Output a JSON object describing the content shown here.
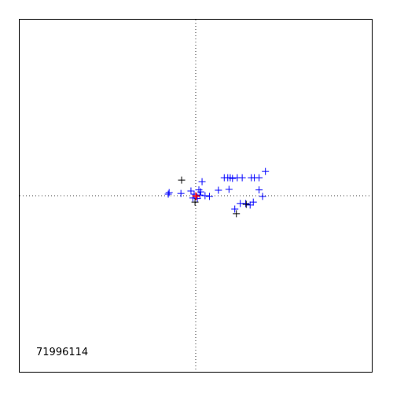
{
  "chart_data": {
    "type": "scatter",
    "title": "",
    "xlabel": "",
    "ylabel": "",
    "annotation": "71996114",
    "xlim": [
      -10,
      10
    ],
    "ylim": [
      -10,
      10
    ],
    "grid": false,
    "zero_lines": true,
    "series": [
      {
        "marker": "+",
        "color": "#0000ff",
        "points": [
          [
            -1.56,
            0.09
          ],
          [
            -1.51,
            0.18
          ],
          [
            -0.84,
            0.13
          ],
          [
            -0.27,
            0.27
          ],
          [
            0.18,
            0.33
          ],
          [
            0.36,
            0.8
          ],
          [
            0.53,
            0.0
          ],
          [
            0.78,
            -0.04
          ],
          [
            1.29,
            0.31
          ],
          [
            1.62,
            1.02
          ],
          [
            1.82,
            1.02
          ],
          [
            1.96,
            1.02
          ],
          [
            2.09,
            0.98
          ],
          [
            2.36,
            1.02
          ],
          [
            2.64,
            1.02
          ],
          [
            3.16,
            1.02
          ],
          [
            3.33,
            1.02
          ],
          [
            3.6,
            1.02
          ],
          [
            3.96,
            1.38
          ],
          [
            1.89,
            0.36
          ],
          [
            2.53,
            -0.44
          ],
          [
            2.84,
            -0.44
          ],
          [
            3.09,
            -0.53
          ],
          [
            3.27,
            -0.36
          ],
          [
            3.6,
            0.33
          ],
          [
            3.8,
            -0.04
          ],
          [
            2.22,
            -0.76
          ],
          [
            0.24,
            0.04
          ],
          [
            0.09,
            -0.16
          ],
          [
            -0.09,
            0.09
          ],
          [
            0.29,
            0.22
          ],
          [
            -0.16,
            -0.13
          ]
        ]
      },
      {
        "marker": "+",
        "color": "#000000",
        "points": [
          [
            -0.8,
            0.89
          ],
          [
            -0.04,
            -0.36
          ],
          [
            2.31,
            -1.02
          ],
          [
            2.87,
            -0.49
          ]
        ]
      },
      {
        "marker": "+",
        "color": "#ff0000",
        "points": [
          [
            0.0,
            0.0
          ],
          [
            0.04,
            -0.04
          ]
        ]
      }
    ]
  }
}
